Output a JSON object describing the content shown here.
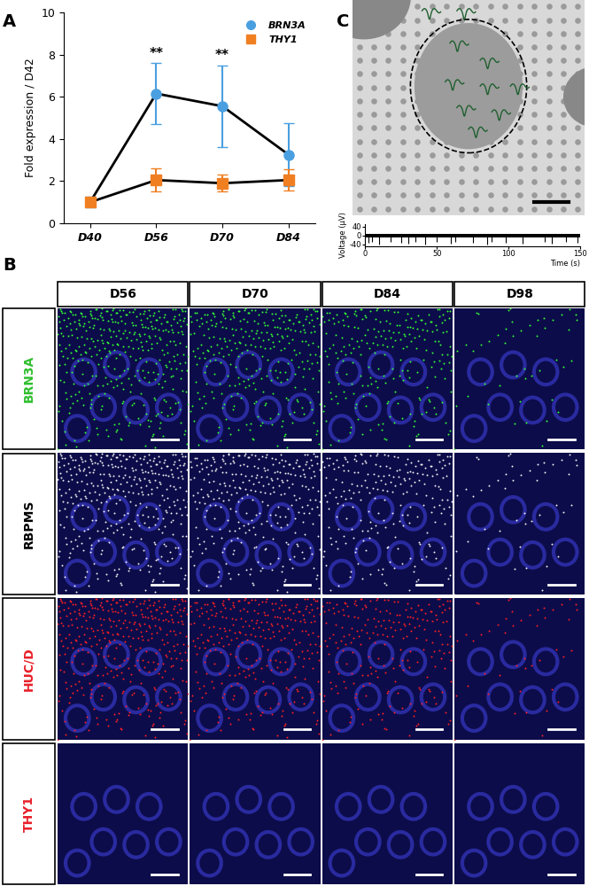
{
  "panel_labels": [
    "A",
    "B",
    "C"
  ],
  "chart_data": [
    {
      "type": "line",
      "ylabel": "Fold expression / D42",
      "categories": [
        "D40",
        "D56",
        "D70",
        "D84"
      ],
      "series": [
        {
          "name": "BRN3A",
          "color": "#4a9fe0",
          "marker": "circle",
          "values": [
            1.0,
            6.15,
            5.55,
            3.25
          ],
          "errors": [
            0.25,
            1.45,
            1.95,
            1.5
          ]
        },
        {
          "name": "THY1",
          "color": "#f07f22",
          "marker": "square",
          "values": [
            1.0,
            2.05,
            1.9,
            2.05
          ],
          "errors": [
            0.2,
            0.55,
            0.4,
            0.5
          ]
        }
      ],
      "ylim": [
        0,
        10
      ],
      "yticks": [
        0,
        2,
        4,
        6,
        8,
        10
      ],
      "grid": false,
      "legend": "upper right",
      "annotations": [
        {
          "text": "**",
          "x": "D56",
          "y": 7.75
        },
        {
          "text": "**",
          "x": "D70",
          "y": 7.65
        }
      ]
    },
    {
      "type": "trace",
      "xlabel": "Time (s)",
      "ylabel": "Voltage (µV)",
      "xlim": [
        0,
        150
      ],
      "xticks": [
        0,
        50,
        100,
        150
      ],
      "ylim": [
        -50,
        50
      ],
      "yticks": [
        -40,
        0,
        40
      ],
      "color": "#000000",
      "noise_band": [
        -8,
        8
      ],
      "spike_times": [
        2,
        5,
        10,
        18,
        25,
        30,
        35,
        42,
        50,
        60,
        63,
        75,
        85,
        88,
        98,
        110,
        125,
        130,
        140,
        148
      ],
      "spike_amplitudes": [
        -35,
        -30,
        -40,
        -28,
        -32,
        -38,
        -30,
        -42,
        -30,
        -36,
        -28,
        -34,
        -40,
        -30,
        -33,
        -38,
        -29,
        -36,
        -31,
        -34
      ]
    }
  ],
  "image_grid": {
    "columns": [
      "D56",
      "D70",
      "D84",
      "D98"
    ],
    "rows": [
      {
        "label": "BRN3A",
        "color": "#2fbf2f",
        "stain_color": "#33ff33"
      },
      {
        "label": "RBPMS",
        "color": "#000000",
        "stain_color": "#f0f0f0"
      },
      {
        "label": "HUC/D",
        "color": "#e8202a",
        "stain_color": "#ff2020"
      },
      {
        "label": "THY1",
        "color": "#e8202a",
        "stain_color": "#ff2020"
      }
    ]
  }
}
